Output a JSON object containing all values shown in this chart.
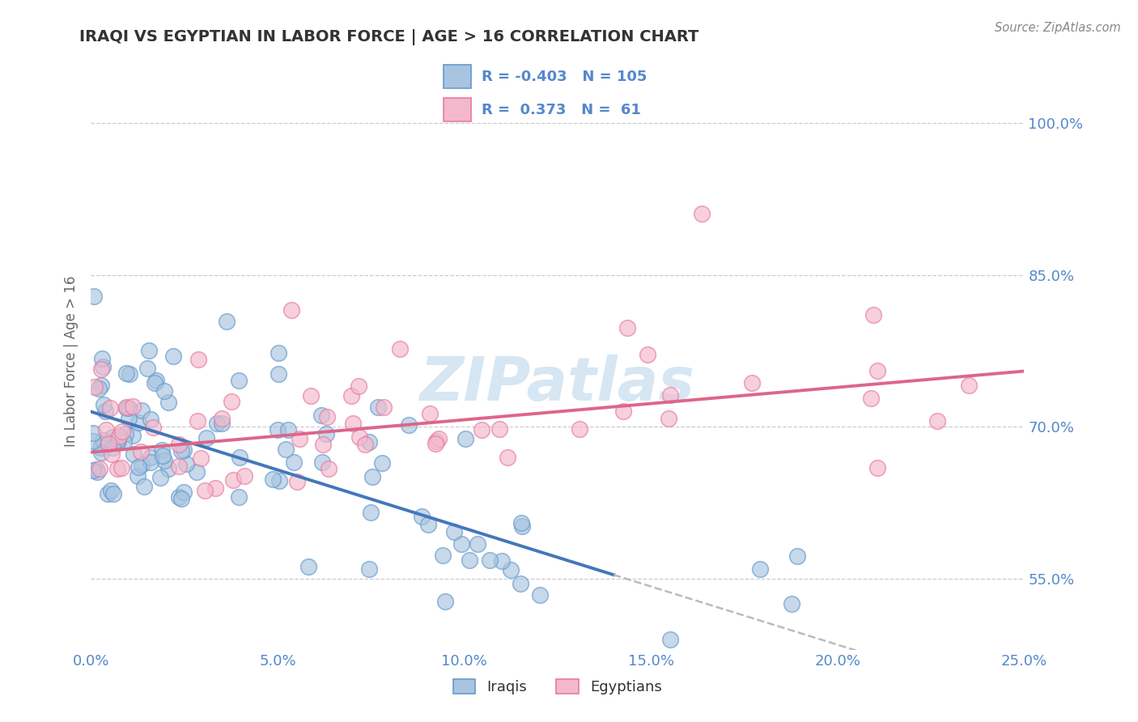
{
  "title": "IRAQI VS EGYPTIAN IN LABOR FORCE | AGE > 16 CORRELATION CHART",
  "source_text": "Source: ZipAtlas.com",
  "ylabel": "In Labor Force | Age > 16",
  "xlim": [
    0.0,
    25.0
  ],
  "ylim": [
    48.0,
    105.0
  ],
  "background_color": "#ffffff",
  "grid_color": "#cccccc",
  "title_color": "#333333",
  "source_color": "#888888",
  "blue_scatter_face": "#a8c4e0",
  "blue_scatter_edge": "#6699cc",
  "pink_scatter_face": "#f4b8cc",
  "pink_scatter_edge": "#e87a9f",
  "blue_line_color": "#4477bb",
  "pink_line_color": "#dd6688",
  "dash_color": "#bbbbbb",
  "legend_R1": "-0.403",
  "legend_N1": "105",
  "legend_R2": "0.373",
  "legend_N2": "61",
  "legend_label1": "Iraqis",
  "legend_label2": "Egyptians",
  "watermark": "ZIPatlas",
  "watermark_color": "#cce0f0",
  "ytick_vals": [
    55,
    70,
    85,
    100
  ],
  "xtick_vals": [
    0,
    5,
    10,
    15,
    20,
    25
  ],
  "tick_color": "#5588cc",
  "blue_solid_end_x": 14.0,
  "blue_line_intercept": 71.5,
  "blue_line_slope": -1.15,
  "pink_line_intercept": 67.5,
  "pink_line_slope": 0.32
}
